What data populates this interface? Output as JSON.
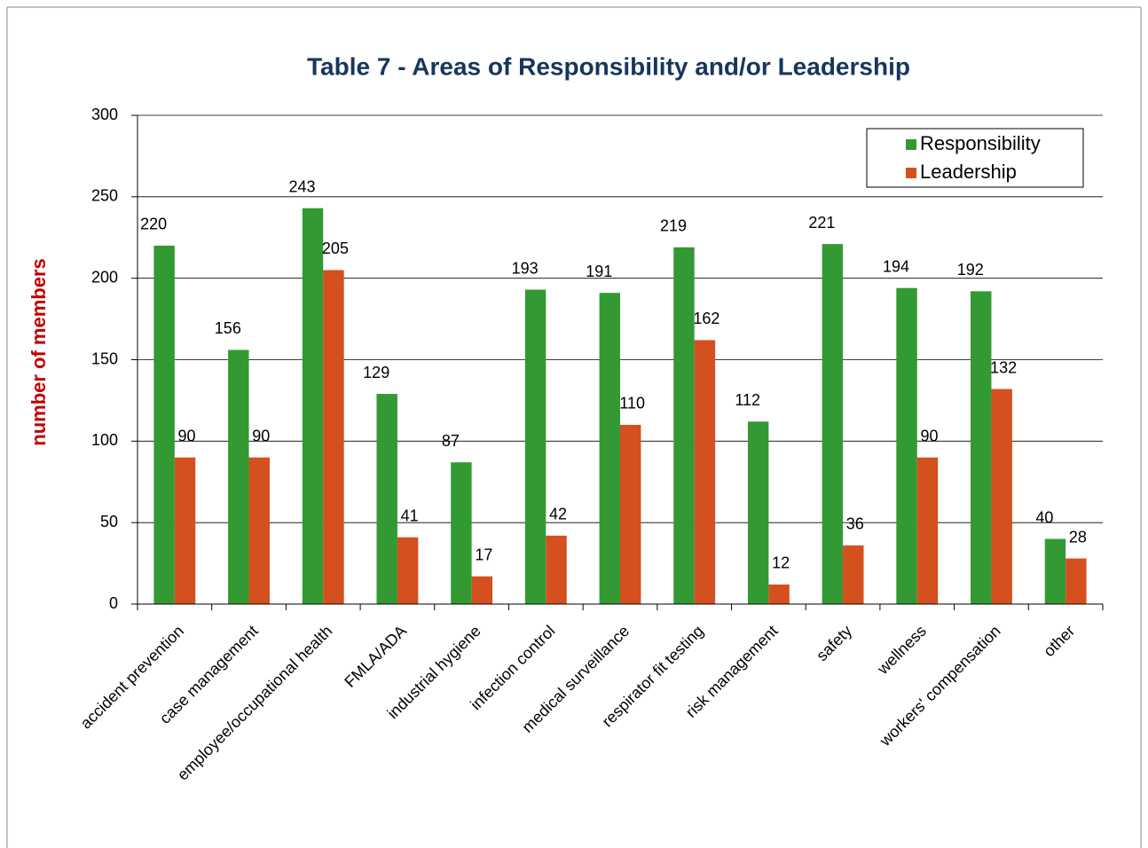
{
  "chart_data": {
    "type": "bar",
    "title": "Table 7 - Areas of Responsibility and/or Leadership",
    "y_label": "number of members",
    "categories": [
      "accident prevention",
      "case management",
      "employee/occupational health",
      "FMLA/ADA",
      "industrial hygiene",
      "infection control",
      "medical surveillance",
      "respirator fit testing",
      "risk management",
      "safety",
      "wellness",
      "workers' compensation",
      "other"
    ],
    "series": [
      {
        "name": "Responsibility",
        "color": "#339933",
        "values": [
          220,
          156,
          243,
          129,
          87,
          193,
          191,
          219,
          112,
          221,
          194,
          192,
          40
        ]
      },
      {
        "name": "Leadership",
        "color": "#d4501f",
        "values": [
          90,
          90,
          205,
          41,
          17,
          42,
          110,
          162,
          12,
          36,
          90,
          132,
          28
        ]
      }
    ],
    "ylim": [
      0,
      300
    ],
    "yticks": [
      0,
      50,
      100,
      150,
      200,
      250,
      300
    ],
    "grid": true,
    "legend": "upper right"
  }
}
